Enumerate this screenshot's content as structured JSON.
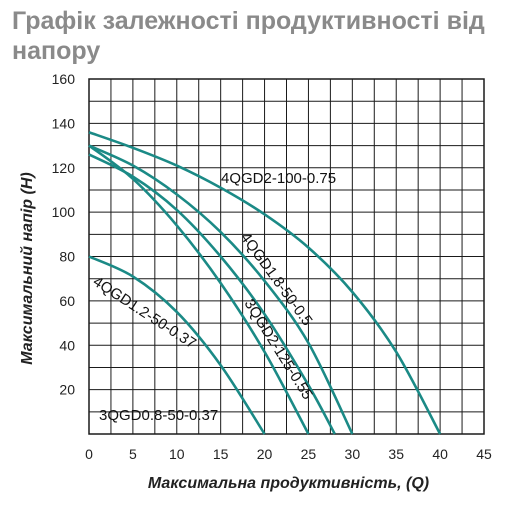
{
  "chart_data": {
    "type": "line",
    "title": "Графік залежності продуктивності від напору",
    "xlabel": "Максимальна продуктивність, (Q)",
    "ylabel": "Максимальний напір (Н)",
    "xlim": [
      0,
      45
    ],
    "ylim": [
      0,
      160
    ],
    "xticks": [
      0,
      5,
      10,
      15,
      20,
      25,
      30,
      35,
      40,
      45
    ],
    "yticks": [
      20,
      40,
      60,
      80,
      100,
      120,
      140,
      160
    ],
    "grid": true,
    "series_color": "#1b8a86",
    "series": [
      {
        "name": "4QGD2-100-0.75",
        "x": [
          0,
          5,
          10,
          15,
          20,
          25,
          30,
          35,
          40
        ],
        "y": [
          136,
          129,
          121,
          111,
          99,
          84,
          64,
          37,
          0
        ]
      },
      {
        "name": "4QGD1.8-50-0.5",
        "x": [
          0,
          5,
          10,
          15,
          20,
          25,
          30
        ],
        "y": [
          130,
          121,
          108,
          91,
          69,
          41,
          0
        ]
      },
      {
        "name": "3QGD2-125-0.55",
        "x": [
          0,
          5,
          10,
          15,
          20,
          25,
          28
        ],
        "y": [
          126,
          116,
          101,
          80,
          54,
          22,
          0
        ]
      },
      {
        "name": "4QGD1.2-50-0.37",
        "x": [
          0,
          5,
          10,
          15,
          20,
          25
        ],
        "y": [
          130,
          115,
          94,
          68,
          37,
          0
        ]
      },
      {
        "name": "3QGD0.8-50-0.37",
        "x": [
          0,
          5,
          10,
          15,
          20
        ],
        "y": [
          80,
          71,
          55,
          31,
          0
        ]
      }
    ]
  }
}
